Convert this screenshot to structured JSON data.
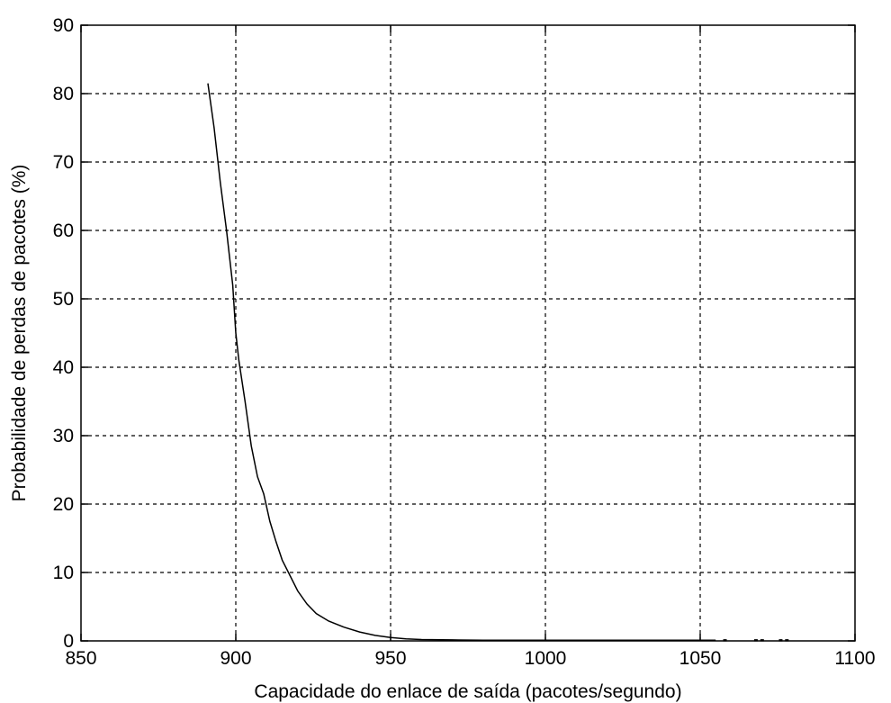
{
  "chart_data": {
    "type": "line",
    "title": "",
    "xlabel": "Capacidade do enlace de saída (pacotes/segundo)",
    "ylabel": "Probabilidade de perdas de pacotes (%)",
    "xlim": [
      850,
      1100
    ],
    "ylim": [
      0,
      90
    ],
    "xticks": [
      850,
      900,
      950,
      1000,
      1050,
      1100
    ],
    "yticks": [
      0,
      10,
      20,
      30,
      40,
      50,
      60,
      70,
      80,
      90
    ],
    "grid": true,
    "series_color": "#000000",
    "series": [
      {
        "x": [
          891,
          893,
          895,
          897,
          899,
          900,
          901,
          903,
          905,
          907,
          909,
          911,
          913,
          915,
          917,
          920,
          923,
          926,
          930,
          935,
          940,
          945,
          950,
          955,
          960,
          970,
          980,
          1000,
          1020,
          1040,
          1055
        ],
        "y": [
          81.5,
          75,
          67,
          60,
          52,
          45,
          41,
          35,
          28.5,
          24,
          21.5,
          17.5,
          14.5,
          11.8,
          10,
          7.3,
          5.4,
          4,
          2.9,
          2,
          1.3,
          0.8,
          0.5,
          0.3,
          0.2,
          0.15,
          0.1,
          0.1,
          0.1,
          0.1,
          0.1
        ]
      }
    ],
    "scatter_points": {
      "x": [
        1058,
        1068,
        1070,
        1076,
        1078
      ],
      "y": [
        0.05,
        0.05,
        0.05,
        0.05,
        0.05
      ]
    }
  }
}
